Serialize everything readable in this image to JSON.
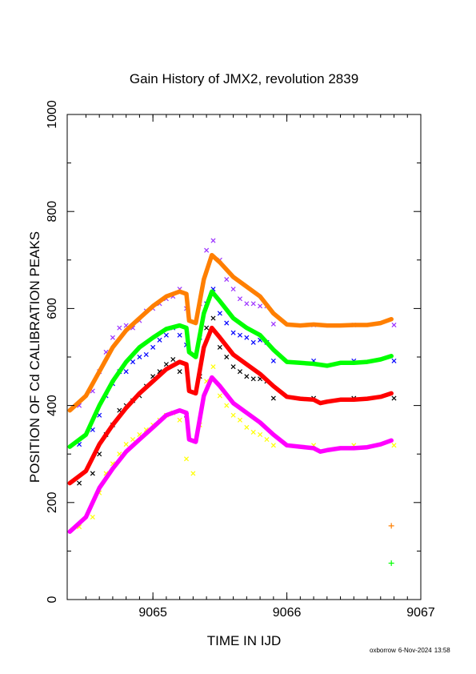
{
  "chart_data": {
    "type": "scatter",
    "title": "Gain History of JMX2, revolution 2839",
    "xlabel": "TIME IN IJD",
    "ylabel": "POSITION OF Cd CALIBRATION PEAKS",
    "xlim": [
      9064.36,
      9067.0
    ],
    "ylim": [
      0,
      1000
    ],
    "xticks": [
      9065,
      9066,
      9067
    ],
    "yticks": [
      0,
      200,
      400,
      600,
      800,
      1000
    ],
    "grid": false,
    "markers": [
      {
        "marker": "x",
        "color": "#9b30ff",
        "points": [
          [
            9064.45,
            400
          ],
          [
            9064.55,
            430
          ],
          [
            9064.6,
            470
          ],
          [
            9064.65,
            510
          ],
          [
            9064.7,
            540
          ],
          [
            9064.75,
            560
          ],
          [
            9064.8,
            565
          ],
          [
            9064.85,
            560
          ],
          [
            9064.9,
            575
          ],
          [
            9064.95,
            595
          ],
          [
            9065.0,
            600
          ],
          [
            9065.05,
            610
          ],
          [
            9065.1,
            620
          ],
          [
            9065.15,
            625
          ],
          [
            9065.2,
            640
          ],
          [
            9065.25,
            600
          ],
          [
            9065.35,
            610
          ],
          [
            9065.4,
            720
          ],
          [
            9065.45,
            740
          ],
          [
            9065.5,
            700
          ],
          [
            9065.55,
            660
          ],
          [
            9065.6,
            640
          ],
          [
            9065.65,
            620
          ],
          [
            9065.7,
            610
          ],
          [
            9065.75,
            610
          ],
          [
            9065.8,
            605
          ],
          [
            9065.85,
            605
          ],
          [
            9065.9,
            568
          ],
          [
            9066.2,
            566
          ],
          [
            9066.5,
            566
          ],
          [
            9066.8,
            566
          ]
        ]
      },
      {
        "marker": "x",
        "color": "#0000ff",
        "points": [
          [
            9064.45,
            320
          ],
          [
            9064.55,
            350
          ],
          [
            9064.6,
            380
          ],
          [
            9064.65,
            420
          ],
          [
            9064.7,
            445
          ],
          [
            9064.75,
            470
          ],
          [
            9064.8,
            470
          ],
          [
            9064.85,
            490
          ],
          [
            9064.9,
            500
          ],
          [
            9064.95,
            505
          ],
          [
            9065.0,
            520
          ],
          [
            9065.05,
            535
          ],
          [
            9065.1,
            545
          ],
          [
            9065.15,
            560
          ],
          [
            9065.2,
            545
          ],
          [
            9065.25,
            525
          ],
          [
            9065.35,
            540
          ],
          [
            9065.4,
            610
          ],
          [
            9065.45,
            640
          ],
          [
            9065.5,
            590
          ],
          [
            9065.55,
            570
          ],
          [
            9065.6,
            550
          ],
          [
            9065.65,
            545
          ],
          [
            9065.7,
            540
          ],
          [
            9065.75,
            530
          ],
          [
            9065.8,
            535
          ],
          [
            9065.85,
            530
          ],
          [
            9065.9,
            492
          ],
          [
            9066.2,
            492
          ],
          [
            9066.5,
            492
          ],
          [
            9066.8,
            492
          ]
        ]
      },
      {
        "marker": "x",
        "color": "#000000",
        "points": [
          [
            9064.45,
            240
          ],
          [
            9064.55,
            260
          ],
          [
            9064.6,
            300
          ],
          [
            9064.65,
            340
          ],
          [
            9064.7,
            360
          ],
          [
            9064.75,
            390
          ],
          [
            9064.8,
            400
          ],
          [
            9064.85,
            410
          ],
          [
            9064.9,
            420
          ],
          [
            9064.95,
            440
          ],
          [
            9065.0,
            460
          ],
          [
            9065.05,
            470
          ],
          [
            9065.1,
            485
          ],
          [
            9065.15,
            495
          ],
          [
            9065.2,
            470
          ],
          [
            9065.25,
            380
          ],
          [
            9065.35,
            460
          ],
          [
            9065.4,
            560
          ],
          [
            9065.45,
            580
          ],
          [
            9065.5,
            520
          ],
          [
            9065.55,
            500
          ],
          [
            9065.6,
            480
          ],
          [
            9065.65,
            470
          ],
          [
            9065.7,
            460
          ],
          [
            9065.75,
            455
          ],
          [
            9065.8,
            455
          ],
          [
            9065.85,
            450
          ],
          [
            9065.9,
            415
          ],
          [
            9066.2,
            415
          ],
          [
            9066.5,
            415
          ],
          [
            9066.8,
            415
          ]
        ]
      },
      {
        "marker": "x",
        "color": "#ffff00",
        "points": [
          [
            9064.45,
            150
          ],
          [
            9064.55,
            170
          ],
          [
            9064.6,
            220
          ],
          [
            9064.65,
            260
          ],
          [
            9064.7,
            280
          ],
          [
            9064.75,
            300
          ],
          [
            9064.8,
            320
          ],
          [
            9064.85,
            330
          ],
          [
            9064.9,
            340
          ],
          [
            9064.95,
            350
          ],
          [
            9065.0,
            360
          ],
          [
            9065.05,
            370
          ],
          [
            9065.1,
            380
          ],
          [
            9065.15,
            385
          ],
          [
            9065.2,
            370
          ],
          [
            9065.25,
            290
          ],
          [
            9065.3,
            260
          ],
          [
            9065.35,
            360
          ],
          [
            9065.4,
            450
          ],
          [
            9065.45,
            480
          ],
          [
            9065.5,
            420
          ],
          [
            9065.55,
            400
          ],
          [
            9065.6,
            380
          ],
          [
            9065.65,
            370
          ],
          [
            9065.7,
            355
          ],
          [
            9065.75,
            345
          ],
          [
            9065.8,
            340
          ],
          [
            9065.85,
            330
          ],
          [
            9065.9,
            318
          ],
          [
            9066.2,
            318
          ],
          [
            9066.5,
            318
          ],
          [
            9066.8,
            318
          ]
        ]
      }
    ],
    "series": [
      {
        "color": "#ff7f00",
        "points": [
          [
            9064.38,
            390
          ],
          [
            9064.5,
            420
          ],
          [
            9064.6,
            470
          ],
          [
            9064.7,
            520
          ],
          [
            9064.8,
            555
          ],
          [
            9064.9,
            580
          ],
          [
            9065.0,
            605
          ],
          [
            9065.1,
            625
          ],
          [
            9065.2,
            635
          ],
          [
            9065.25,
            630
          ],
          [
            9065.27,
            575
          ],
          [
            9065.32,
            570
          ],
          [
            9065.38,
            660
          ],
          [
            9065.44,
            710
          ],
          [
            9065.5,
            695
          ],
          [
            9065.6,
            665
          ],
          [
            9065.7,
            645
          ],
          [
            9065.8,
            625
          ],
          [
            9065.9,
            590
          ],
          [
            9066.0,
            567
          ],
          [
            9066.1,
            565
          ],
          [
            9066.2,
            567
          ],
          [
            9066.3,
            565
          ],
          [
            9066.4,
            565
          ],
          [
            9066.5,
            566
          ],
          [
            9066.6,
            566
          ],
          [
            9066.7,
            570
          ],
          [
            9066.78,
            578
          ]
        ]
      },
      {
        "color": "#00ff00",
        "points": [
          [
            9064.38,
            315
          ],
          [
            9064.5,
            340
          ],
          [
            9064.6,
            400
          ],
          [
            9064.7,
            450
          ],
          [
            9064.8,
            490
          ],
          [
            9064.9,
            520
          ],
          [
            9065.0,
            540
          ],
          [
            9065.1,
            558
          ],
          [
            9065.2,
            565
          ],
          [
            9065.25,
            560
          ],
          [
            9065.27,
            510
          ],
          [
            9065.32,
            500
          ],
          [
            9065.38,
            590
          ],
          [
            9065.44,
            635
          ],
          [
            9065.5,
            615
          ],
          [
            9065.6,
            580
          ],
          [
            9065.7,
            560
          ],
          [
            9065.8,
            545
          ],
          [
            9065.9,
            515
          ],
          [
            9066.0,
            490
          ],
          [
            9066.1,
            488
          ],
          [
            9066.2,
            486
          ],
          [
            9066.3,
            482
          ],
          [
            9066.4,
            488
          ],
          [
            9066.5,
            488
          ],
          [
            9066.6,
            490
          ],
          [
            9066.7,
            495
          ],
          [
            9066.78,
            502
          ]
        ]
      },
      {
        "color": "#ff0000",
        "points": [
          [
            9064.38,
            240
          ],
          [
            9064.5,
            265
          ],
          [
            9064.6,
            320
          ],
          [
            9064.7,
            360
          ],
          [
            9064.8,
            395
          ],
          [
            9064.9,
            425
          ],
          [
            9065.0,
            450
          ],
          [
            9065.1,
            475
          ],
          [
            9065.2,
            490
          ],
          [
            9065.25,
            485
          ],
          [
            9065.27,
            430
          ],
          [
            9065.32,
            425
          ],
          [
            9065.38,
            520
          ],
          [
            9065.44,
            560
          ],
          [
            9065.5,
            540
          ],
          [
            9065.6,
            505
          ],
          [
            9065.7,
            485
          ],
          [
            9065.8,
            465
          ],
          [
            9065.9,
            440
          ],
          [
            9066.0,
            418
          ],
          [
            9066.1,
            414
          ],
          [
            9066.2,
            412
          ],
          [
            9066.25,
            405
          ],
          [
            9066.3,
            408
          ],
          [
            9066.4,
            412
          ],
          [
            9066.5,
            412
          ],
          [
            9066.6,
            414
          ],
          [
            9066.7,
            418
          ],
          [
            9066.78,
            425
          ]
        ]
      },
      {
        "color": "#ff00ff",
        "points": [
          [
            9064.38,
            140
          ],
          [
            9064.5,
            170
          ],
          [
            9064.6,
            230
          ],
          [
            9064.7,
            270
          ],
          [
            9064.8,
            305
          ],
          [
            9064.9,
            330
          ],
          [
            9065.0,
            355
          ],
          [
            9065.1,
            380
          ],
          [
            9065.2,
            390
          ],
          [
            9065.25,
            385
          ],
          [
            9065.27,
            330
          ],
          [
            9065.32,
            325
          ],
          [
            9065.38,
            420
          ],
          [
            9065.44,
            458
          ],
          [
            9065.5,
            440
          ],
          [
            9065.6,
            405
          ],
          [
            9065.7,
            385
          ],
          [
            9065.8,
            365
          ],
          [
            9065.9,
            340
          ],
          [
            9066.0,
            318
          ],
          [
            9066.1,
            315
          ],
          [
            9066.2,
            312
          ],
          [
            9066.25,
            305
          ],
          [
            9066.3,
            308
          ],
          [
            9066.4,
            312
          ],
          [
            9066.5,
            312
          ],
          [
            9066.6,
            314
          ],
          [
            9066.7,
            320
          ],
          [
            9066.78,
            328
          ]
        ]
      }
    ],
    "extra_points": [
      {
        "marker": "+",
        "color": "#ff7f00",
        "x": 9066.78,
        "y": 152
      },
      {
        "marker": "+",
        "color": "#00ff00",
        "x": 9066.78,
        "y": 75
      }
    ]
  },
  "footer": {
    "user": "oxborrow",
    "date": "6-Nov-2024",
    "time": "13:58"
  }
}
